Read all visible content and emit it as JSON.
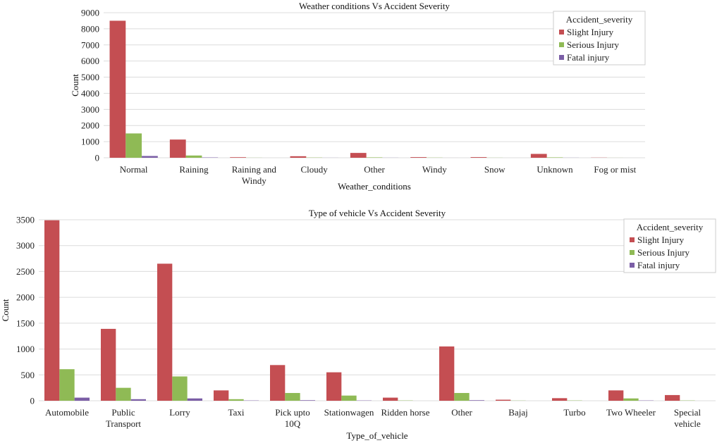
{
  "legend_title": "Accident_severity",
  "colors": {
    "Slight Injury": "#c44e52",
    "Serious Injury": "#8fba55",
    "Fatal injury": "#7b5ea6"
  },
  "chart_data": [
    {
      "type": "bar",
      "title": "Weather conditions Vs Accident Severity",
      "xlabel": "Weather_conditions",
      "ylabel": "Count",
      "ylim": [
        0,
        9000
      ],
      "yticks": [
        0,
        1000,
        2000,
        3000,
        4000,
        5000,
        6000,
        7000,
        8000,
        9000
      ],
      "grid": true,
      "legend": "top-right",
      "categories": [
        "Normal",
        "Raining",
        "Raining and Windy",
        "Cloudy",
        "Other",
        "Windy",
        "Snow",
        "Unknown",
        "Fog or mist"
      ],
      "series": [
        {
          "name": "Slight Injury",
          "values": [
            8500,
            1130,
            35,
            95,
            300,
            40,
            40,
            240,
            10
          ]
        },
        {
          "name": "Serious Injury",
          "values": [
            1510,
            140,
            5,
            15,
            25,
            10,
            5,
            25,
            2
          ]
        },
        {
          "name": "Fatal injury",
          "values": [
            110,
            20,
            0,
            3,
            5,
            1,
            0,
            5,
            0
          ]
        }
      ]
    },
    {
      "type": "bar",
      "title": "Type of vehicle Vs Accident Severity",
      "xlabel": "Type_of_vehicle",
      "ylabel": "Count",
      "ylim": [
        0,
        3500
      ],
      "yticks": [
        0,
        500,
        1000,
        1500,
        2000,
        2500,
        3000,
        3500
      ],
      "grid": true,
      "legend": "top-right",
      "categories": [
        "Automobile",
        "Public Transport",
        "Lorry",
        "Taxi",
        "Pick upto 10Q",
        "Stationwagen",
        "Ridden horse",
        "Other",
        "Bajaj",
        "Turbo",
        "Two Wheeler",
        "Special vehicle"
      ],
      "series": [
        {
          "name": "Slight Injury",
          "values": [
            3490,
            1390,
            2650,
            200,
            690,
            550,
            60,
            1050,
            20,
            50,
            200,
            110
          ]
        },
        {
          "name": "Serious Injury",
          "values": [
            610,
            250,
            470,
            30,
            150,
            100,
            5,
            150,
            3,
            5,
            45,
            5
          ]
        },
        {
          "name": "Fatal injury",
          "values": [
            60,
            30,
            45,
            5,
            10,
            5,
            0,
            10,
            0,
            0,
            5,
            0
          ]
        }
      ]
    }
  ]
}
